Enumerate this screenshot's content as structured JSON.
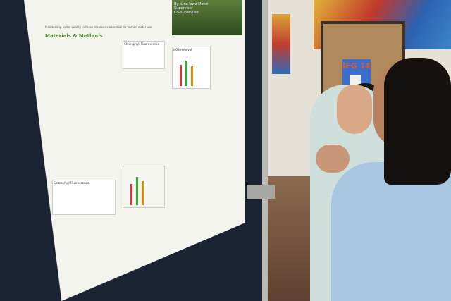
{
  "poster": {
    "title_lines": [
      "By: Lina Izwa Mohd",
      "Supervisor",
      "Co-Supervisor"
    ],
    "intro": "Maintaining water quality in these reservoirs essential for human water use",
    "sections": [
      "Materials & Methods"
    ],
    "charts": [
      "Chlorophyll Fluorescence",
      "NO3 removal",
      "Chlorophyll Fluorescence"
    ]
  },
  "sign": {
    "label": "IFG 14"
  },
  "colors": {
    "board": "#1b2433",
    "poster": "#f4f4ef",
    "sign": "#3a6fd0",
    "heading": "#4c8a2a"
  }
}
